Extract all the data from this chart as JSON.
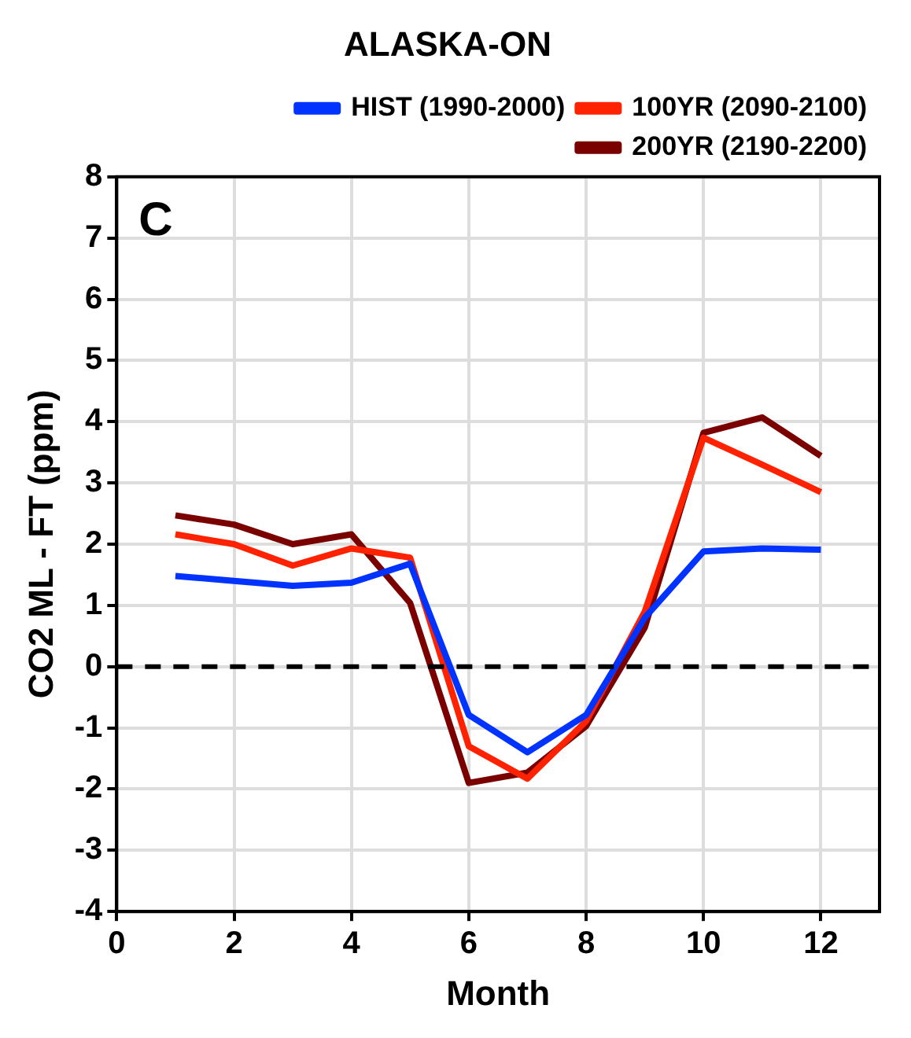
{
  "chart_data": {
    "type": "line",
    "title": "ALASKA-ON",
    "xlabel": "Month",
    "ylabel": "CO2 ML - FT (ppm)",
    "x": [
      1,
      2,
      3,
      4,
      5,
      6,
      7,
      8,
      9,
      10,
      11,
      12
    ],
    "series": [
      {
        "name": "HIST (1990-2000)",
        "color": "#0033ff",
        "values": [
          1.48,
          1.4,
          1.32,
          1.37,
          1.68,
          -0.79,
          -1.4,
          -0.79,
          0.8,
          1.88,
          1.93,
          1.91
        ]
      },
      {
        "name": "100YR (2090-2100)",
        "color": "#ff2200",
        "values": [
          2.16,
          2.0,
          1.65,
          1.93,
          1.78,
          -1.3,
          -1.83,
          -0.89,
          0.9,
          3.74,
          3.3,
          2.85
        ]
      },
      {
        "name": "200YR (2190-2200)",
        "color": "#7a0000",
        "values": [
          2.47,
          2.32,
          2.0,
          2.16,
          1.04,
          -1.9,
          -1.73,
          -0.97,
          0.64,
          3.82,
          4.07,
          3.44
        ]
      }
    ],
    "xlim": [
      0,
      13
    ],
    "xticks": [
      0,
      2,
      4,
      6,
      8,
      10,
      12
    ],
    "ylim": [
      -4,
      8
    ],
    "yticks": [
      -4,
      -3,
      -2,
      -1,
      0,
      1,
      2,
      3,
      4,
      5,
      6,
      7,
      8
    ],
    "ref_lines": [
      {
        "axis": "y",
        "value": 0,
        "color": "#000000",
        "line_style": "dashed"
      }
    ],
    "annotations": [
      "C"
    ],
    "grid": true,
    "legend": "top right",
    "marker": "none",
    "line_style": "solid"
  }
}
